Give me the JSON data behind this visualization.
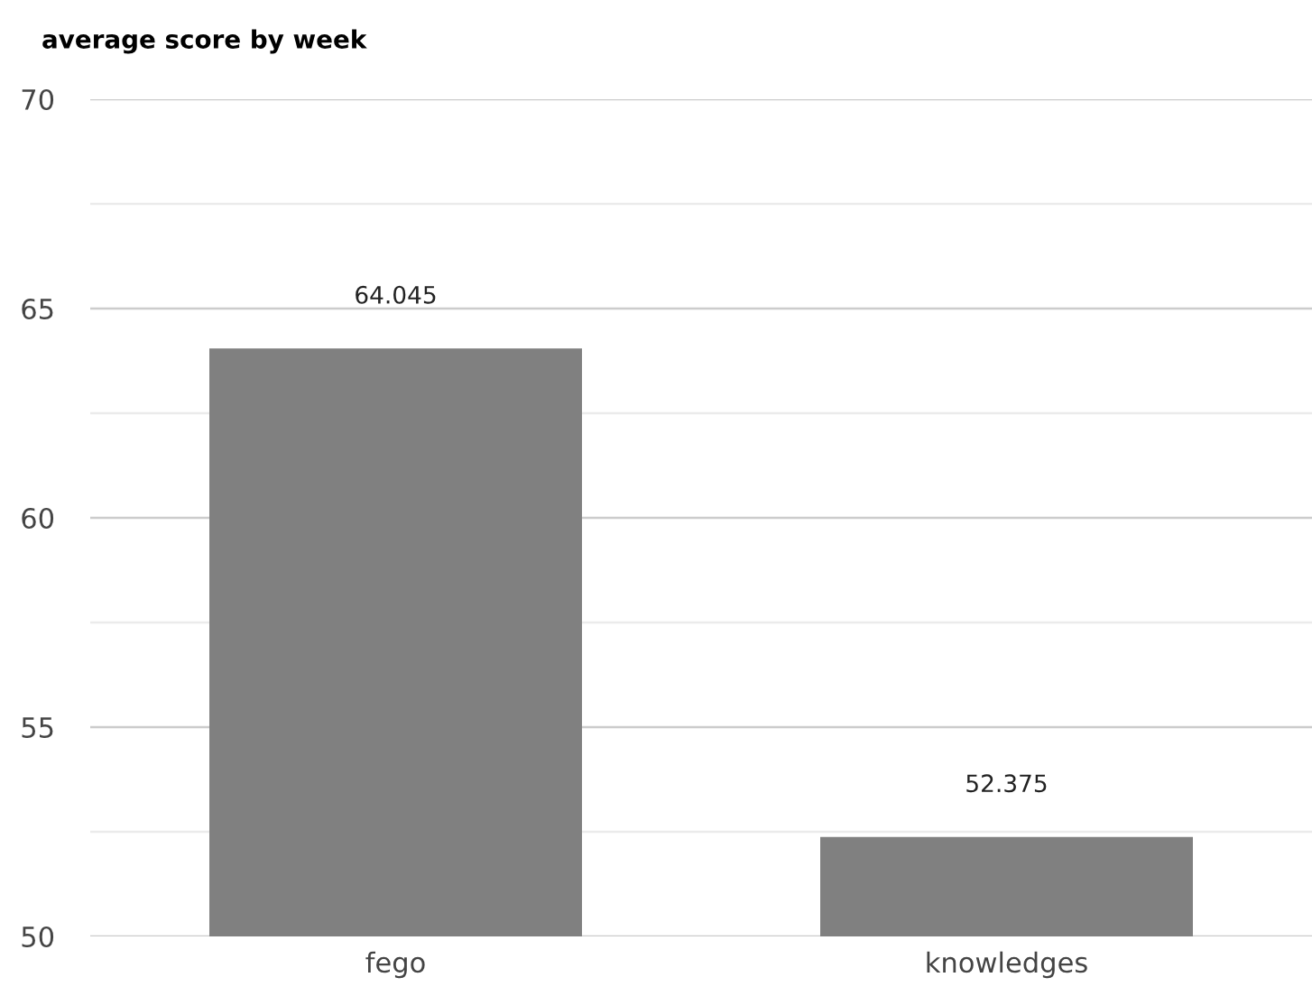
{
  "chart_data": {
    "type": "bar",
    "title": "average score by week",
    "categories": [
      "fego",
      "knowledges"
    ],
    "values": [
      64.045,
      52.375
    ],
    "color": "#808080",
    "ylim": [
      50,
      70
    ],
    "yticks": [
      50,
      {
        "value": 52.5,
        "label": null
      },
      55,
      {
        "value": 57.5,
        "label": null
      },
      60,
      {
        "value": 62.5,
        "label": null
      },
      65,
      {
        "value": 67.5,
        "label": null
      },
      70
    ],
    "grid": "y",
    "data_labels": true
  }
}
